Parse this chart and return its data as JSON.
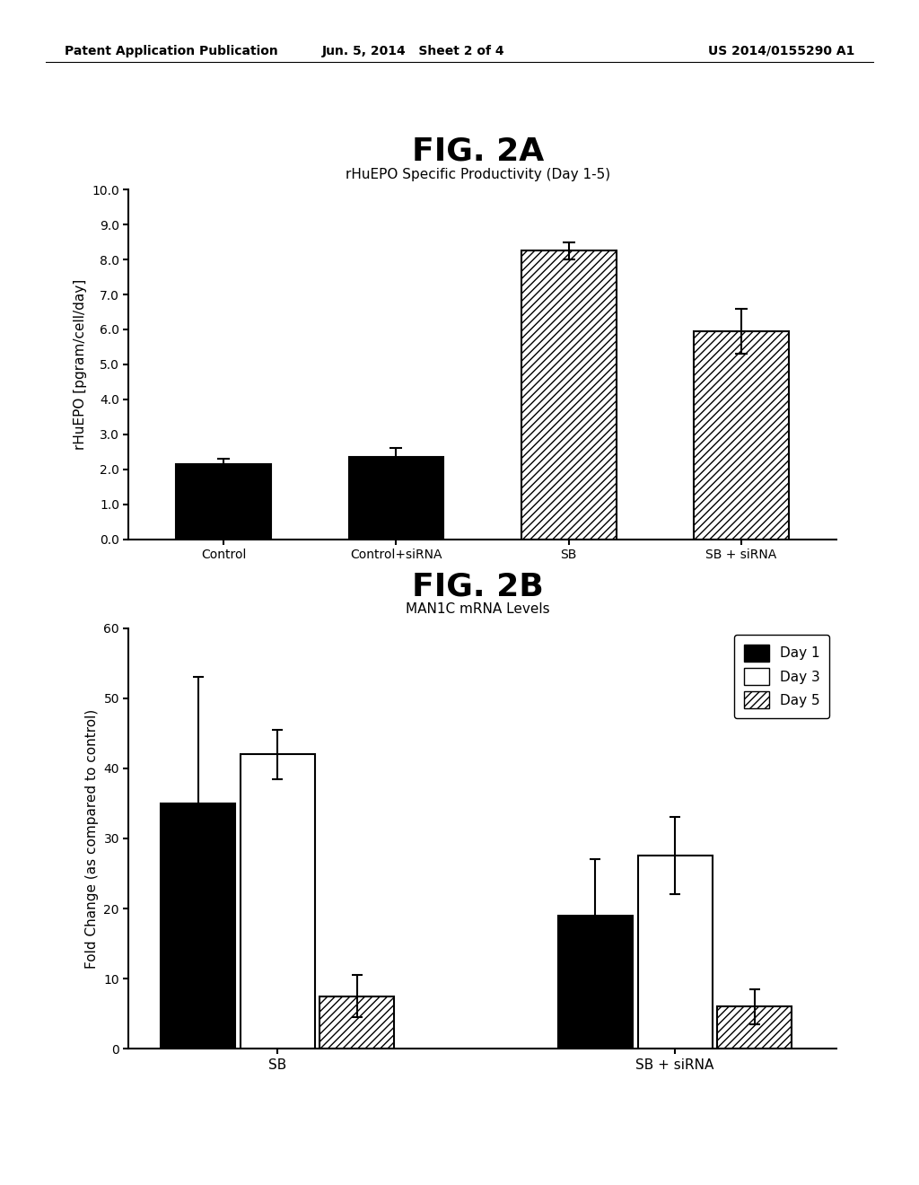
{
  "header_left": "Patent Application Publication",
  "header_center": "Jun. 5, 2014   Sheet 2 of 4",
  "header_right": "US 2014/0155290 A1",
  "fig2a_title": "FIG. 2A",
  "fig2a_subtitle": "rHuEPO Specific Productivity (Day 1-5)",
  "fig2a_ylabel": "rHuEPO [pgram/cell/day]",
  "fig2a_categories": [
    "Control",
    "Control+siRNA",
    "SB",
    "SB + siRNA"
  ],
  "fig2a_values": [
    2.15,
    2.35,
    8.25,
    5.95
  ],
  "fig2a_errors": [
    0.15,
    0.25,
    0.25,
    0.65
  ],
  "fig2a_ylim": [
    0,
    10.0
  ],
  "fig2a_yticks": [
    0.0,
    1.0,
    2.0,
    3.0,
    4.0,
    5.0,
    6.0,
    7.0,
    8.0,
    9.0,
    10.0
  ],
  "fig2a_ytick_labels": [
    "0.0",
    "1.0",
    "2.0",
    "3.0",
    "4.0",
    "5.0",
    "6.0",
    "7.0",
    "8.0",
    "9.0",
    "10.0"
  ],
  "fig2a_colors": [
    "black",
    "black",
    "white",
    "white"
  ],
  "fig2a_hatch": [
    "",
    "",
    "////",
    "////"
  ],
  "fig2a_edgecolors": [
    "black",
    "black",
    "black",
    "black"
  ],
  "fig2b_title": "FIG. 2B",
  "fig2b_subtitle": "MAN1C mRNA Levels",
  "fig2b_ylabel": "Fold Change (as compared to control)",
  "fig2b_group_labels": [
    "SB",
    "SB + siRNA"
  ],
  "fig2b_series_labels": [
    "Day 1",
    "Day 3",
    "Day 5"
  ],
  "fig2b_values": [
    [
      35.0,
      42.0,
      7.5
    ],
    [
      19.0,
      27.5,
      6.0
    ]
  ],
  "fig2b_errors": [
    [
      18.0,
      3.5,
      3.0
    ],
    [
      8.0,
      5.5,
      2.5
    ]
  ],
  "fig2b_ylim": [
    0,
    60
  ],
  "fig2b_yticks": [
    0,
    10,
    20,
    30,
    40,
    50,
    60
  ],
  "fig2b_colors": [
    "black",
    "white",
    "white"
  ],
  "fig2b_hatch": [
    "",
    "",
    "////"
  ],
  "fig2b_edgecolors": [
    "black",
    "black",
    "black"
  ],
  "background_color": "#ffffff",
  "header_fontsize": 10,
  "fig_title_fontsize": 26,
  "subtitle_fontsize": 11,
  "axis_label_fontsize": 11,
  "tick_fontsize": 10,
  "legend_fontsize": 11
}
